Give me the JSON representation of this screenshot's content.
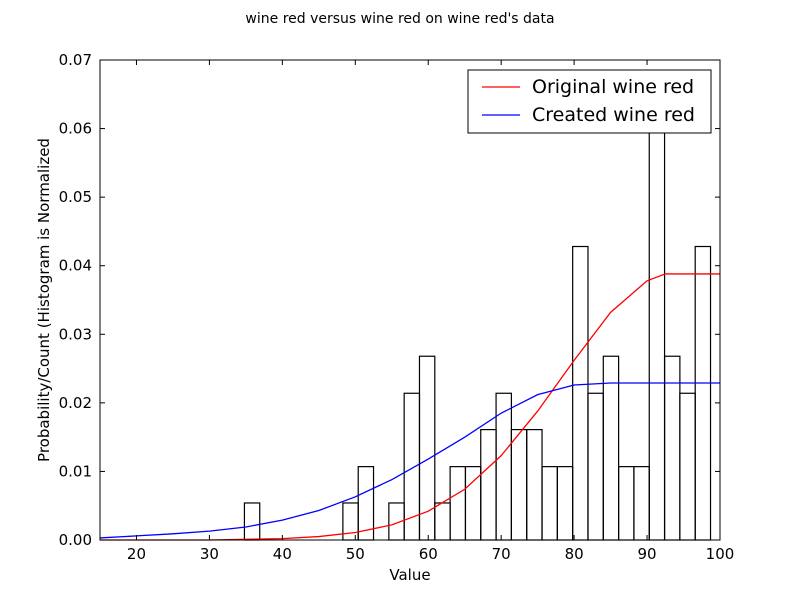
{
  "chart_data": {
    "type": "bar",
    "title": "wine red versus wine red on wine red's data",
    "xlabel": "Value",
    "ylabel": "Probability/Count (Histogram is Normalized",
    "xlim": [
      15,
      100
    ],
    "ylim": [
      0,
      0.07
    ],
    "xticks": [
      20,
      30,
      40,
      50,
      60,
      70,
      80,
      90,
      100
    ],
    "yticks": [
      0.0,
      0.01,
      0.02,
      0.03,
      0.04,
      0.05,
      0.06,
      0.07
    ],
    "ytick_labels": [
      "0.00",
      "0.01",
      "0.02",
      "0.03",
      "0.04",
      "0.05",
      "0.06",
      "0.07"
    ],
    "grid": false,
    "legend_position": "top-right",
    "histogram": {
      "bin_width": 2.1,
      "bins": [
        {
          "start": 34.8,
          "value": 0.0054
        },
        {
          "start": 48.3,
          "value": 0.0054
        },
        {
          "start": 50.4,
          "value": 0.0107
        },
        {
          "start": 54.6,
          "value": 0.0054
        },
        {
          "start": 56.7,
          "value": 0.0214
        },
        {
          "start": 58.8,
          "value": 0.0268
        },
        {
          "start": 60.9,
          "value": 0.0054
        },
        {
          "start": 63.0,
          "value": 0.0107
        },
        {
          "start": 65.1,
          "value": 0.0107
        },
        {
          "start": 67.2,
          "value": 0.0161
        },
        {
          "start": 69.3,
          "value": 0.0214
        },
        {
          "start": 71.4,
          "value": 0.0161
        },
        {
          "start": 73.5,
          "value": 0.0161
        },
        {
          "start": 75.6,
          "value": 0.0107
        },
        {
          "start": 77.7,
          "value": 0.0107
        },
        {
          "start": 79.8,
          "value": 0.0428
        },
        {
          "start": 81.9,
          "value": 0.0214
        },
        {
          "start": 84.0,
          "value": 0.0268
        },
        {
          "start": 86.1,
          "value": 0.0107
        },
        {
          "start": 88.2,
          "value": 0.0107
        },
        {
          "start": 90.3,
          "value": 0.0642
        },
        {
          "start": 92.4,
          "value": 0.0268
        },
        {
          "start": 94.5,
          "value": 0.0214
        },
        {
          "start": 96.6,
          "value": 0.0428
        }
      ]
    },
    "series": [
      {
        "name": "Original wine red",
        "color": "#ff0000",
        "x": [
          15,
          20,
          25,
          30,
          35,
          40,
          45,
          50,
          55,
          60,
          65,
          70,
          75,
          80,
          85,
          90,
          92.5,
          95,
          100
        ],
        "y": [
          0.0,
          0.0,
          0.0,
          0.0,
          0.0001,
          0.0002,
          0.0005,
          0.0011,
          0.0022,
          0.0042,
          0.0074,
          0.0123,
          0.0188,
          0.0262,
          0.0332,
          0.0378,
          0.0388,
          0.0388,
          0.0388
        ]
      },
      {
        "name": "Created wine red",
        "color": "#0000ff",
        "x": [
          15,
          20,
          25,
          30,
          35,
          40,
          45,
          50,
          55,
          60,
          65,
          70,
          75,
          80,
          85,
          90,
          95,
          100
        ],
        "y": [
          0.0003,
          0.0006,
          0.0009,
          0.0013,
          0.0019,
          0.0029,
          0.0043,
          0.0063,
          0.0088,
          0.0118,
          0.015,
          0.0185,
          0.0212,
          0.0226,
          0.0229,
          0.0229,
          0.0229,
          0.0229
        ]
      }
    ]
  }
}
